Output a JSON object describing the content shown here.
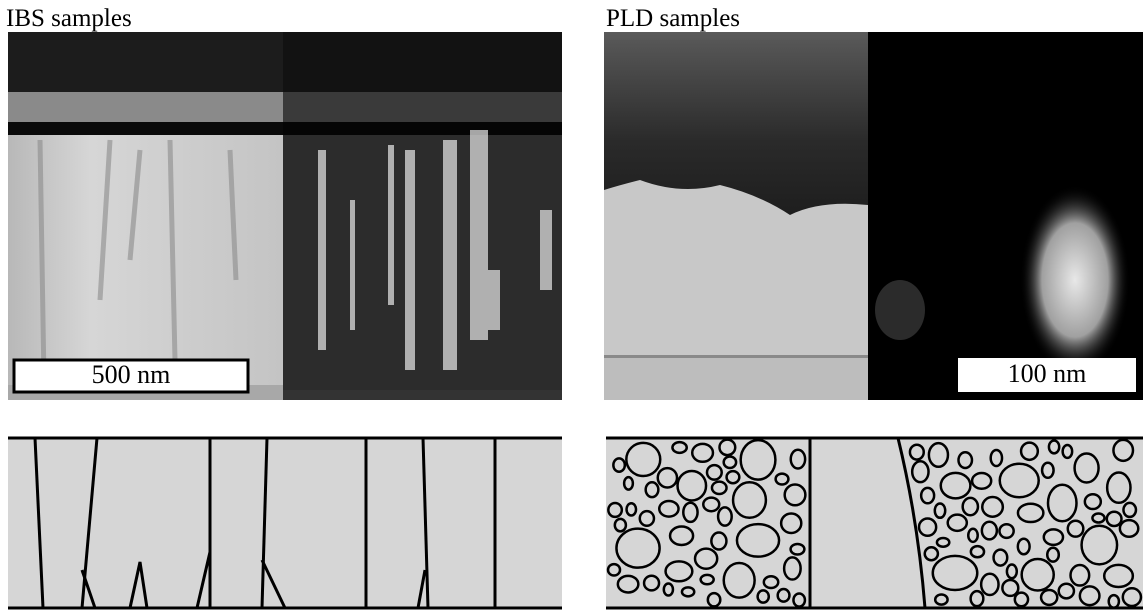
{
  "panels": [
    {
      "title": "IBS samples",
      "scale_bar": "500 nm"
    },
    {
      "title": "PLD samples",
      "scale_bar": "100 nm"
    }
  ]
}
